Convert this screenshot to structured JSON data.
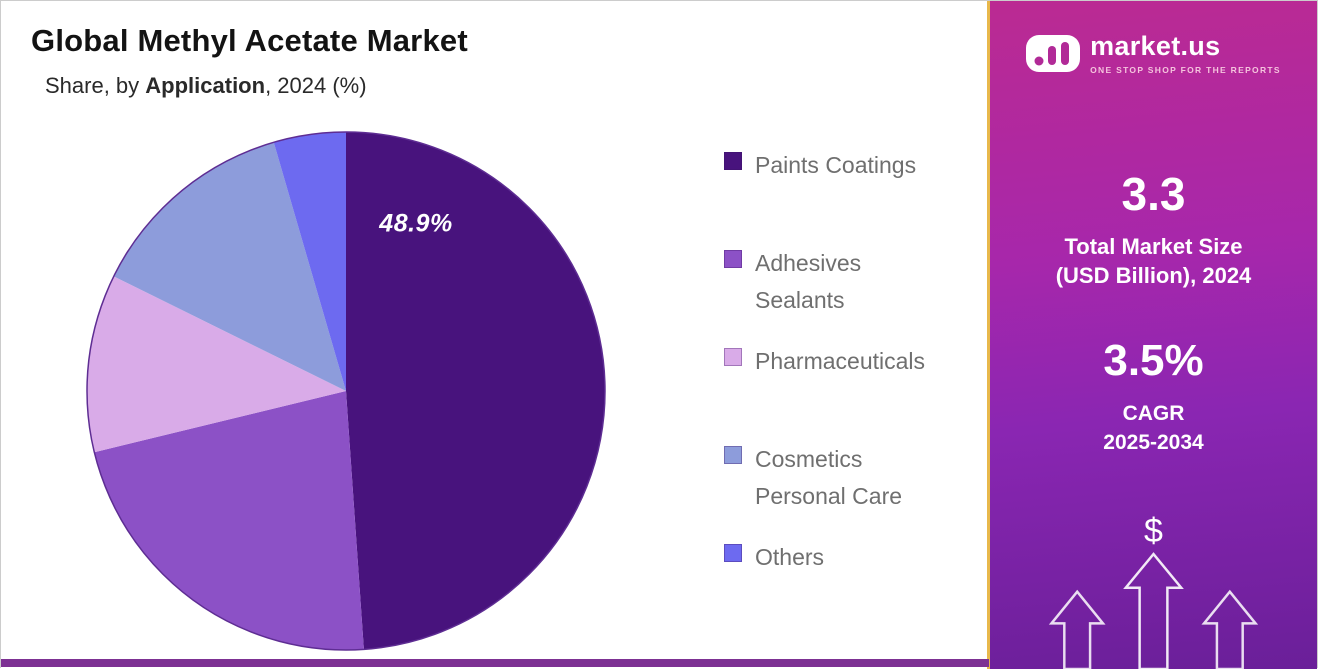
{
  "header": {
    "title": "Global Methyl Acetate Market",
    "subtitle_prefix": "Share, by ",
    "subtitle_emphasis": "Application",
    "subtitle_suffix": ", 2024 (%)"
  },
  "chart_data": {
    "type": "pie",
    "title": "Global Methyl Acetate Market Share, by Application, 2024 (%)",
    "labels": [
      "Paints Coatings",
      "Adhesives Sealants",
      "Pharmaceuticals",
      "Cosmetics Personal Care",
      "Others"
    ],
    "legend_labels": [
      "Paints Coatings",
      "Adhesives\nSealants",
      "Pharmaceuticals",
      "Cosmetics\nPersonal Care",
      "Others"
    ],
    "values": [
      48.9,
      22.3,
      11.1,
      13.2,
      4.5
    ],
    "colors": [
      "#48137d",
      "#8c51c6",
      "#d9abe8",
      "#8d9cdb",
      "#6d6af0"
    ],
    "shown_label": "48.9%",
    "start_angle_deg": 0,
    "direction": "clockwise",
    "legend_position": "right",
    "outline_color": "#5e2d93"
  },
  "sidebar": {
    "brand": {
      "name": "market.us",
      "tagline": "ONE STOP SHOP FOR THE REPORTS"
    },
    "market_size_value": "3.3",
    "market_size_label_line1": "Total Market Size",
    "market_size_label_line2": "(USD Billion), 2024",
    "cagr_value": "3.5%",
    "cagr_label_line1": "CAGR",
    "cagr_label_line2": "2025-2034",
    "dollar_symbol": "$",
    "accent_border": "#e8b84b",
    "gradient_top": "#bb2a92",
    "gradient_bottom": "#6a1f99",
    "footer_strip_color": "#7d3193"
  }
}
